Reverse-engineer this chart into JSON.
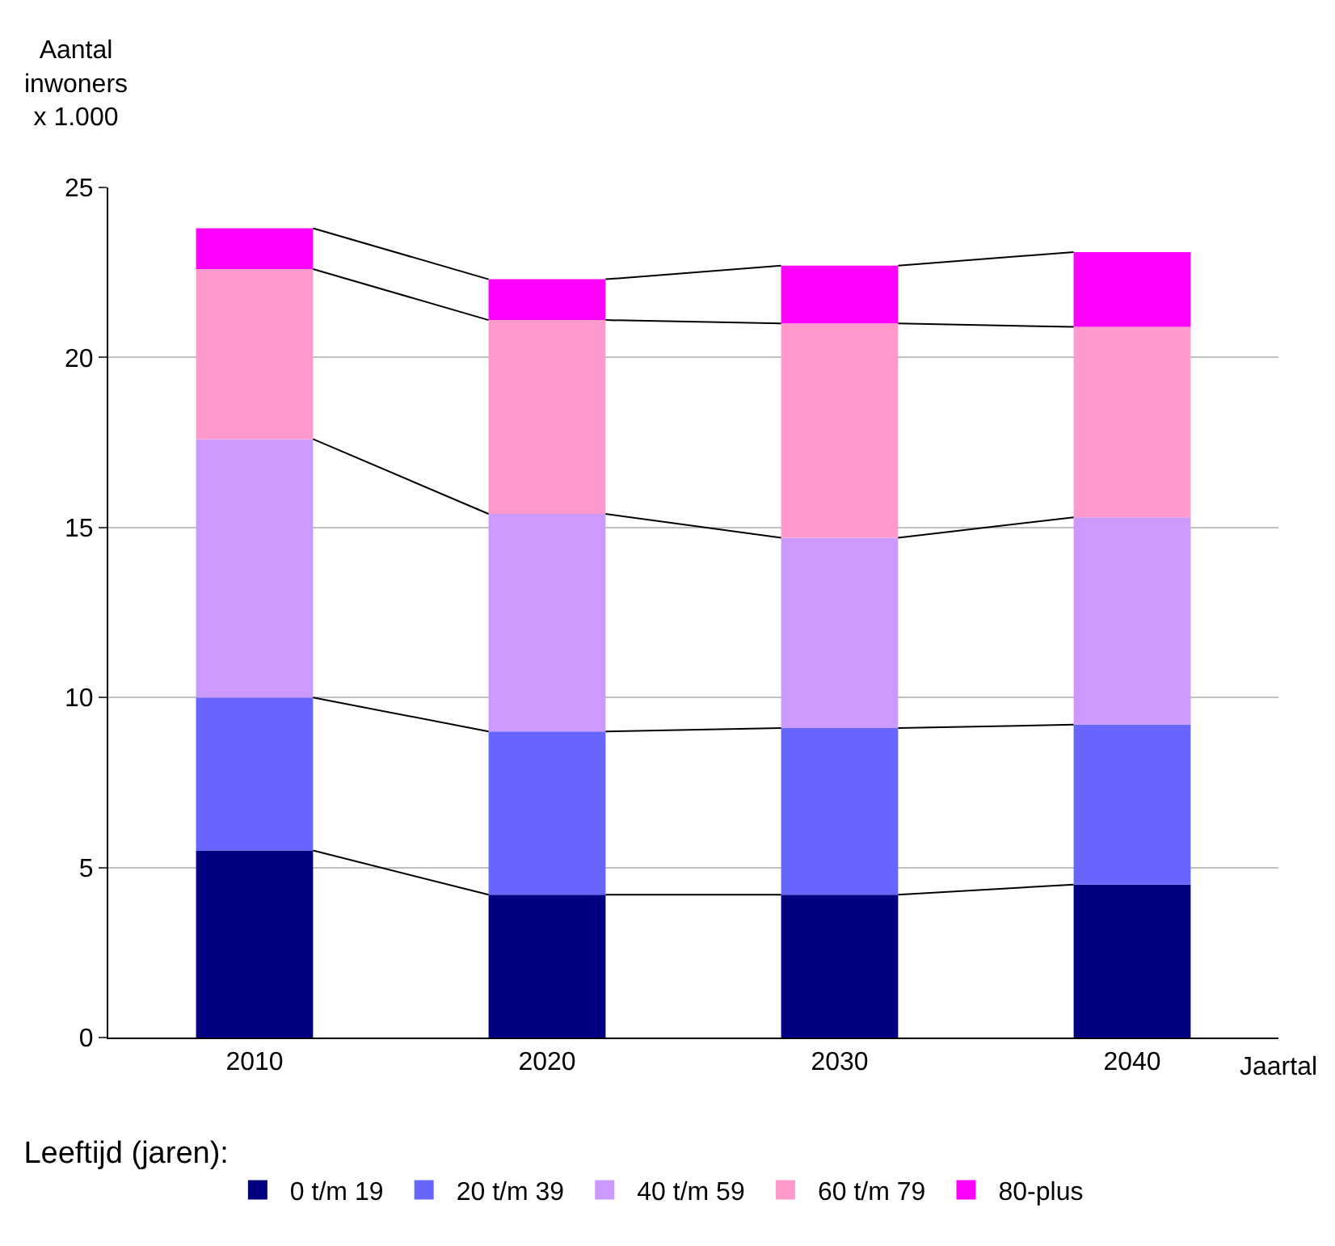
{
  "chart_data": {
    "type": "bar",
    "stacked": true,
    "ylabel": "Aantal\ninwoners\nx 1.000",
    "xlabel": "Jaartal",
    "legend_title": "Leeftijd (jaren):",
    "categories": [
      "2010",
      "2020",
      "2030",
      "2040"
    ],
    "series": [
      {
        "name": "0 t/m 19",
        "color": "#000080",
        "values": [
          5.5,
          4.2,
          4.2,
          4.5
        ]
      },
      {
        "name": "20 t/m 39",
        "color": "#6666ff",
        "values": [
          4.5,
          4.8,
          4.9,
          4.7
        ]
      },
      {
        "name": "40 t/m 59",
        "color": "#cc99ff",
        "values": [
          7.6,
          6.4,
          5.6,
          6.1
        ]
      },
      {
        "name": "60 t/m 79",
        "color": "#ff99cc",
        "values": [
          5.0,
          5.7,
          6.3,
          5.6
        ]
      },
      {
        "name": "80-plus",
        "color": "#ff00ff",
        "values": [
          1.2,
          1.2,
          1.7,
          2.2
        ]
      }
    ],
    "ylim": [
      0,
      25
    ],
    "yticks": [
      0,
      5,
      10,
      15,
      20,
      25
    ],
    "grid": "y",
    "legend": "bottom"
  }
}
